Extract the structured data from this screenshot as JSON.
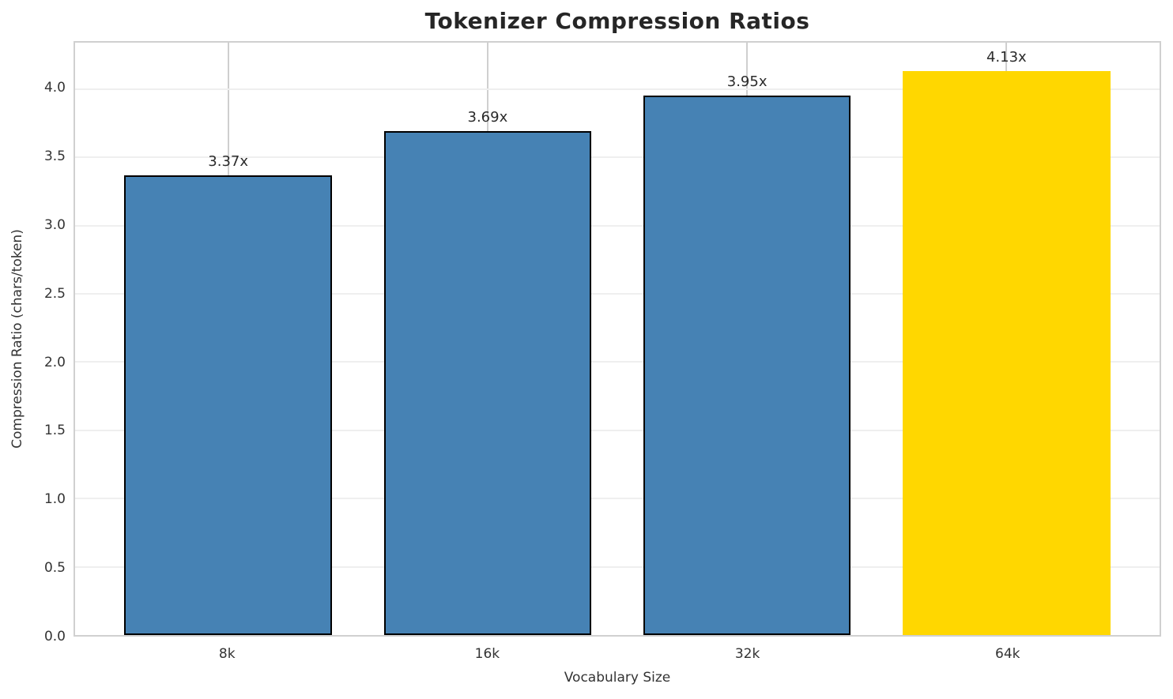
{
  "chart_data": {
    "type": "bar",
    "title": "Tokenizer Compression Ratios",
    "xlabel": "Vocabulary Size",
    "ylabel": "Compression Ratio (chars/token)",
    "categories": [
      "8k",
      "16k",
      "32k",
      "64k"
    ],
    "values": [
      3.37,
      3.69,
      3.95,
      4.13
    ],
    "bar_labels": [
      "3.37x",
      "3.69x",
      "3.95x",
      "4.13x"
    ],
    "yticks": [
      0.0,
      0.5,
      1.0,
      1.5,
      2.0,
      2.5,
      3.0,
      3.5,
      4.0
    ],
    "ytick_labels": [
      "0.0",
      "0.5",
      "1.0",
      "1.5",
      "2.0",
      "2.5",
      "3.0",
      "3.5",
      "4.0"
    ],
    "ylim": [
      0,
      4.34
    ],
    "grid": true,
    "legend": "none",
    "bar_colors": [
      "#4682B4",
      "#4682B4",
      "#4682B4",
      "#FFD700"
    ],
    "bar_edge_colors": [
      "#000000",
      "#000000",
      "#000000",
      "#FFD700"
    ],
    "colors": {
      "bar_blue": "#4682B4",
      "bar_gold": "#FFD700",
      "bar_edge": "#000000",
      "h_grid": "#efefef",
      "v_grid": "#cfcfcf",
      "spine": "#d0d0d0",
      "title_text": "#262626",
      "tick_text": "#333333"
    }
  }
}
